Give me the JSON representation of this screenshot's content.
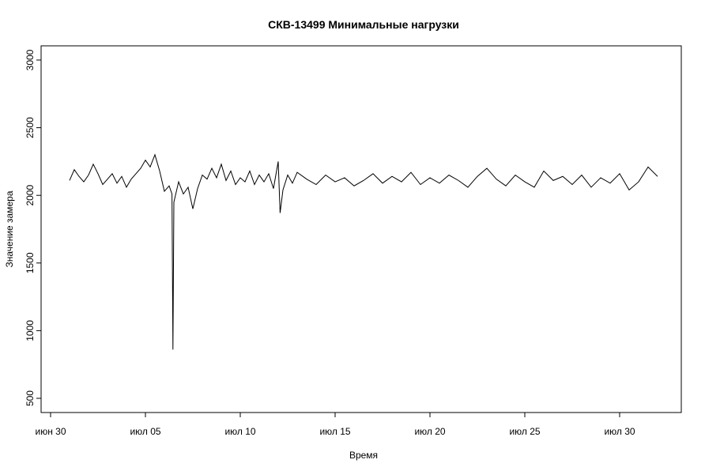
{
  "chart_data": {
    "type": "line",
    "title": "СКВ-13499 Минимальные нагрузки",
    "x_label": "Время",
    "y_label": "Значение замера",
    "color": "#000000",
    "x": [
      1.0,
      1.25,
      1.5,
      1.75,
      2.0,
      2.25,
      2.5,
      2.75,
      3.0,
      3.25,
      3.5,
      3.75,
      4.0,
      4.25,
      4.5,
      4.75,
      5.0,
      5.25,
      5.5,
      5.75,
      6.0,
      6.25,
      6.4,
      6.45,
      6.5,
      6.75,
      7.0,
      7.25,
      7.5,
      7.75,
      8.0,
      8.25,
      8.5,
      8.75,
      9.0,
      9.25,
      9.5,
      9.75,
      10.0,
      10.25,
      10.5,
      10.75,
      11.0,
      11.25,
      11.5,
      11.75,
      12.0,
      12.1,
      12.25,
      12.5,
      12.75,
      13.0,
      13.5,
      14.0,
      14.5,
      15.0,
      15.5,
      16.0,
      16.5,
      17.0,
      17.5,
      18.0,
      18.5,
      19.0,
      19.5,
      20.0,
      20.5,
      21.0,
      21.5,
      22.0,
      22.5,
      23.0,
      23.5,
      24.0,
      24.5,
      25.0,
      25.5,
      26.0,
      26.5,
      27.0,
      27.5,
      28.0,
      28.5,
      29.0,
      29.5,
      30.0,
      30.5,
      31.0,
      31.5,
      32.0
    ],
    "values": [
      2110,
      2190,
      2140,
      2100,
      2150,
      2230,
      2160,
      2080,
      2120,
      2160,
      2090,
      2140,
      2060,
      2120,
      2160,
      2200,
      2260,
      2210,
      2300,
      2180,
      2030,
      2070,
      2010,
      860,
      1950,
      2100,
      2010,
      2060,
      1900,
      2050,
      2150,
      2120,
      2200,
      2130,
      2230,
      2110,
      2180,
      2080,
      2130,
      2100,
      2180,
      2080,
      2150,
      2100,
      2160,
      2050,
      2250,
      1870,
      2040,
      2150,
      2090,
      2170,
      2120,
      2080,
      2150,
      2100,
      2130,
      2070,
      2110,
      2160,
      2090,
      2140,
      2100,
      2170,
      2080,
      2130,
      2090,
      2150,
      2110,
      2060,
      2140,
      2200,
      2120,
      2070,
      2150,
      2100,
      2060,
      2180,
      2110,
      2140,
      2080,
      2150,
      2060,
      2130,
      2090,
      2160,
      2040,
      2100,
      2210,
      2140
    ],
    "xlim": [
      -0.5,
      33.25
    ],
    "xticks": [
      {
        "value": 0,
        "label": "июн 30"
      },
      {
        "value": 5,
        "label": "июл 05"
      },
      {
        "value": 10,
        "label": "июл 10"
      },
      {
        "value": 15,
        "label": "июл 15"
      },
      {
        "value": 20,
        "label": "июл 20"
      },
      {
        "value": 25,
        "label": "июл 25"
      },
      {
        "value": 30,
        "label": "июл 30"
      }
    ],
    "ylim": [
      395,
      3105
    ],
    "yticks": [
      500,
      1000,
      1500,
      2000,
      2500,
      3000
    ]
  }
}
